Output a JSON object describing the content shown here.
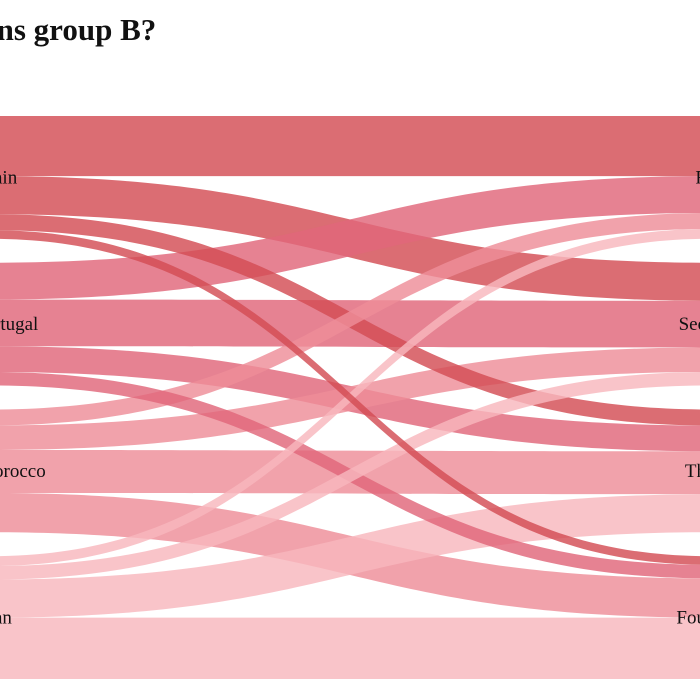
{
  "chart_data": {
    "type": "sankey",
    "title": "ins group B?",
    "sources": [
      {
        "id": "s1",
        "label": "ain",
        "color": "#d34d54"
      },
      {
        "id": "s2",
        "label": "rtugal",
        "color": "#e1677a"
      },
      {
        "id": "s3",
        "label": "orocco",
        "color": "#ee8e98"
      },
      {
        "id": "s4",
        "label": "an",
        "color": "#f8b7bd"
      }
    ],
    "targets": [
      {
        "id": "t1",
        "label": "F"
      },
      {
        "id": "t2",
        "label": "Sec"
      },
      {
        "id": "t3",
        "label": "Th"
      },
      {
        "id": "t4",
        "label": "Fou"
      }
    ],
    "flows": [
      {
        "source": "s1",
        "target": "t1",
        "value": 49
      },
      {
        "source": "s1",
        "target": "t2",
        "value": 31
      },
      {
        "source": "s1",
        "target": "t3",
        "value": 13
      },
      {
        "source": "s1",
        "target": "t4",
        "value": 7
      },
      {
        "source": "s2",
        "target": "t1",
        "value": 30
      },
      {
        "source": "s2",
        "target": "t2",
        "value": 38
      },
      {
        "source": "s2",
        "target": "t3",
        "value": 21
      },
      {
        "source": "s2",
        "target": "t4",
        "value": 11
      },
      {
        "source": "s3",
        "target": "t1",
        "value": 13
      },
      {
        "source": "s3",
        "target": "t2",
        "value": 20
      },
      {
        "source": "s3",
        "target": "t3",
        "value": 35
      },
      {
        "source": "s3",
        "target": "t4",
        "value": 32
      },
      {
        "source": "s4",
        "target": "t1",
        "value": 8
      },
      {
        "source": "s4",
        "target": "t2",
        "value": 11
      },
      {
        "source": "s4",
        "target": "t3",
        "value": 31
      },
      {
        "source": "s4",
        "target": "t4",
        "value": 50
      }
    ]
  }
}
